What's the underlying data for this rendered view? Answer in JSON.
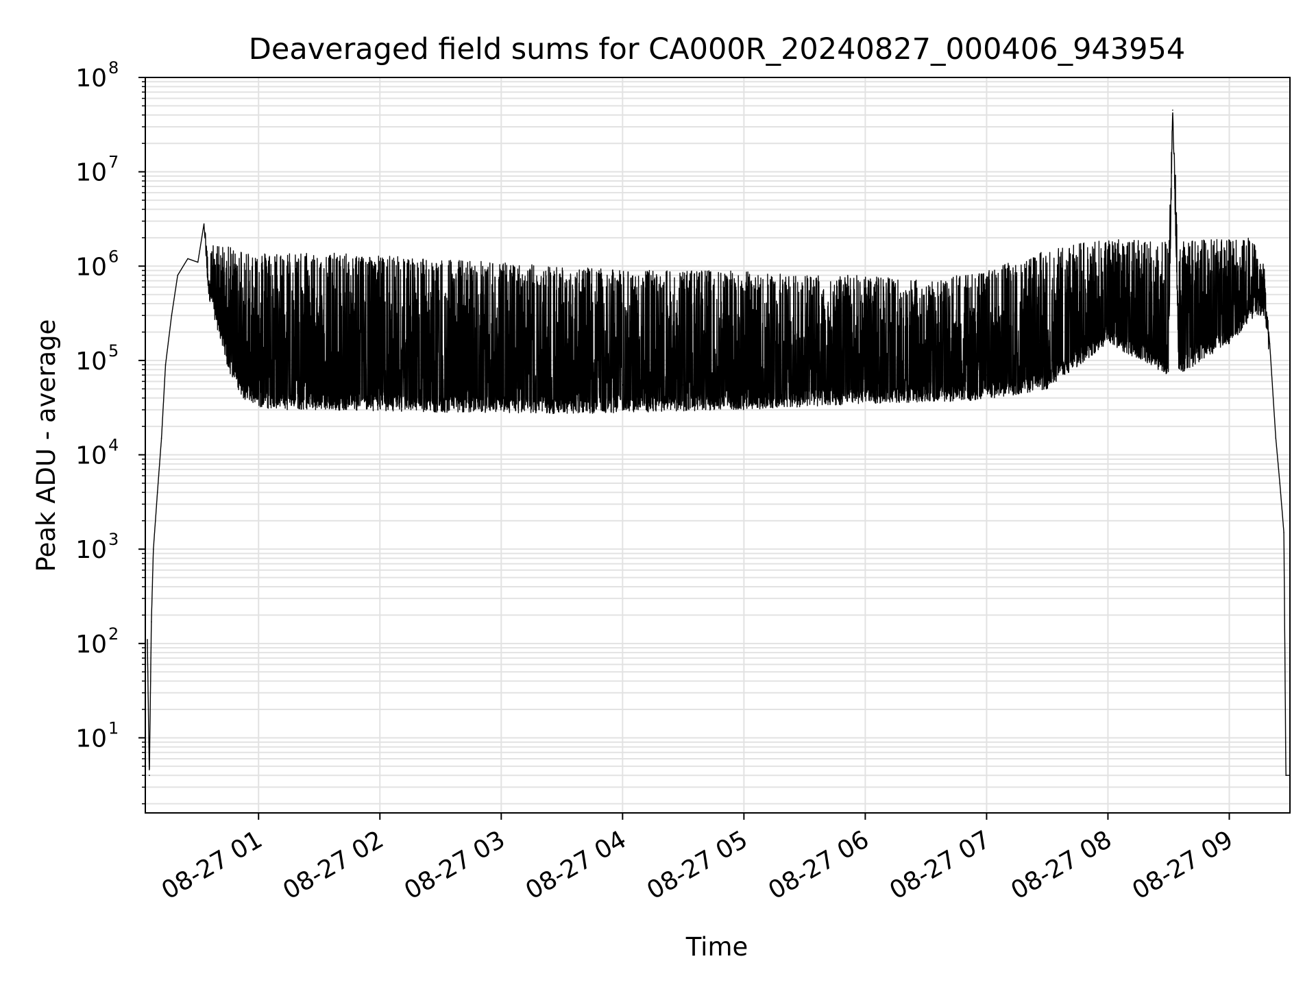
{
  "chart_data": {
    "type": "line",
    "title": "Deaveraged field sums for CA000R_20240827_000406_943954",
    "xlabel": "Time",
    "ylabel": "Peak ADU - average",
    "yscale": "log",
    "ylim": [
      1.6,
      100000000
    ],
    "xlim": [
      "08-27 00:04",
      "08-27 09:30"
    ],
    "grid": true,
    "line_color": "#000000",
    "grid_color": "#e2e2e2",
    "x_ticks": [
      "08-27 01",
      "08-27 02",
      "08-27 03",
      "08-27 04",
      "08-27 05",
      "08-27 06",
      "08-27 07",
      "08-27 08",
      "08-27 09"
    ],
    "y_ticks": [
      {
        "value": 10,
        "base": "10",
        "exp": "1"
      },
      {
        "value": 100,
        "base": "10",
        "exp": "2"
      },
      {
        "value": 1000,
        "base": "10",
        "exp": "3"
      },
      {
        "value": 10000,
        "base": "10",
        "exp": "4"
      },
      {
        "value": 100000,
        "base": "10",
        "exp": "5"
      },
      {
        "value": 1000000,
        "base": "10",
        "exp": "6"
      },
      {
        "value": 10000000,
        "base": "10",
        "exp": "7"
      },
      {
        "value": 100000000,
        "base": "10",
        "exp": "8"
      }
    ],
    "series": [
      {
        "x": [
          "08-27 00:05",
          "08-27 00:06",
          "08-27 00:07",
          "08-27 00:08",
          "08-27 00:10",
          "08-27 00:12",
          "08-27 00:14",
          "08-27 00:17",
          "08-27 00:20",
          "08-27 00:25",
          "08-27 00:30",
          "08-27 00:33",
          "08-27 00:35",
          "08-27 00:40",
          "08-27 00:45",
          "08-27 00:52",
          "08-27 01:00",
          "08-27 01:10",
          "08-27 01:30",
          "08-27 02:00",
          "08-27 02:30",
          "08-27 03:00",
          "08-27 03:30",
          "08-27 04:00",
          "08-27 04:30",
          "08-27 05:00",
          "08-27 05:30",
          "08-27 06:00",
          "08-27 06:30",
          "08-27 07:00",
          "08-27 07:30",
          "08-27 08:00",
          "08-27 08:30",
          "08-27 08:32",
          "08-27 08:35",
          "08-27 09:00",
          "08-27 09:10",
          "08-27 09:13",
          "08-27 09:17",
          "08-27 09:20",
          "08-27 09:23",
          "08-27 09:25",
          "08-27 09:27",
          "08-27 09:28",
          "08-27 09:30"
        ],
        "y": [
          110,
          4,
          170,
          1000,
          4000,
          15000,
          90000,
          300000,
          800000,
          1200000,
          1100000,
          2800000,
          700000,
          400000,
          250000,
          120000,
          70000,
          55000,
          60000,
          55000,
          60000,
          55000,
          58000,
          55000,
          55000,
          55000,
          55000,
          60000,
          55000,
          70000,
          180000,
          500000,
          300000,
          45000000,
          400000,
          700000,
          1000000,
          1000000,
          800000,
          150000,
          15000,
          5000,
          1500,
          4,
          4
        ],
        "upper": [
          110,
          4,
          170,
          1000,
          4000,
          15000,
          90000,
          300000,
          800000,
          1200000,
          1300000,
          2800000,
          1700000,
          1700000,
          1600000,
          1500000,
          1400000,
          1400000,
          1400000,
          1300000,
          1200000,
          1100000,
          1000000,
          900000,
          900000,
          900000,
          800000,
          800000,
          700000,
          900000,
          1500000,
          2000000,
          1800000,
          45000000,
          1800000,
          2000000,
          2000000,
          1800000,
          1200000,
          150000,
          15000,
          5000,
          1500,
          4,
          4
        ],
        "lower": [
          110,
          4,
          170,
          1000,
          4000,
          15000,
          90000,
          300000,
          800000,
          1200000,
          1100000,
          2800000,
          500000,
          200000,
          80000,
          40000,
          32000,
          30000,
          30000,
          29000,
          28000,
          28000,
          27000,
          28000,
          29000,
          30000,
          32000,
          35000,
          36000,
          38000,
          50000,
          150000,
          70000,
          45000000,
          70000,
          150000,
          250000,
          300000,
          300000,
          150000,
          15000,
          5000,
          1500,
          4,
          4
        ]
      }
    ]
  }
}
